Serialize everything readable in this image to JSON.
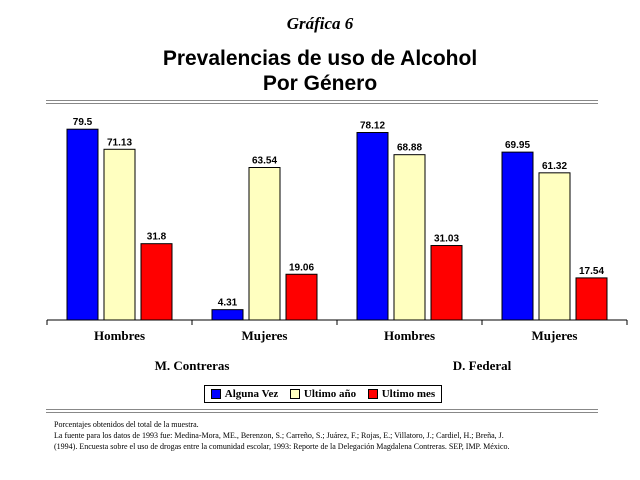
{
  "header": {
    "graph_number": "Gráfica 6",
    "title_line1": "Prevalencias de uso de Alcohol",
    "title_line2": "Por Género"
  },
  "chart_data": {
    "type": "bar",
    "categories": [
      "Hombres",
      "Mujeres",
      "Hombres",
      "Mujeres"
    ],
    "groups": [
      {
        "label": "M. Contreras",
        "categories": [
          "Hombres",
          "Mujeres"
        ]
      },
      {
        "label": "D. Federal",
        "categories": [
          "Hombres",
          "Mujeres"
        ]
      }
    ],
    "series": [
      {
        "name": "Alguna Vez",
        "color": "#0000ff",
        "values": [
          79.5,
          4.31,
          78.12,
          69.95
        ],
        "labels": [
          "79.5",
          "4.31",
          "78.12",
          "69.95"
        ]
      },
      {
        "name": "Ultimo año",
        "color": "#ffffc0",
        "values": [
          71.13,
          63.54,
          68.88,
          61.32
        ],
        "labels": [
          "71.13",
          "63.54",
          "68.88",
          "61.32"
        ]
      },
      {
        "name": "Ultimo mes",
        "color": "#ff0000",
        "values": [
          31.8,
          19.06,
          31.03,
          17.54
        ],
        "labels": [
          "31.8",
          "19.06",
          "31.03",
          "17.54"
        ]
      }
    ],
    "ylim": [
      0,
      80
    ],
    "legend_position": "bottom"
  },
  "footnote": {
    "line1": "Porcentajes obtenidos del total de la muestra.",
    "line2": "La fuente para los datos de 1993 fue: Medina-Mora, ME., Berenzon, S.; Carreño, S.; Juárez, F.; Rojas, E.; Villatoro, J.; Cardiel, H.; Breña, J.",
    "line3": "(1994). Encuesta sobre el uso de drogas entre la comunidad escolar, 1993: Reporte de la Delegación Magdalena Contreras. SEP, IMP. México."
  }
}
